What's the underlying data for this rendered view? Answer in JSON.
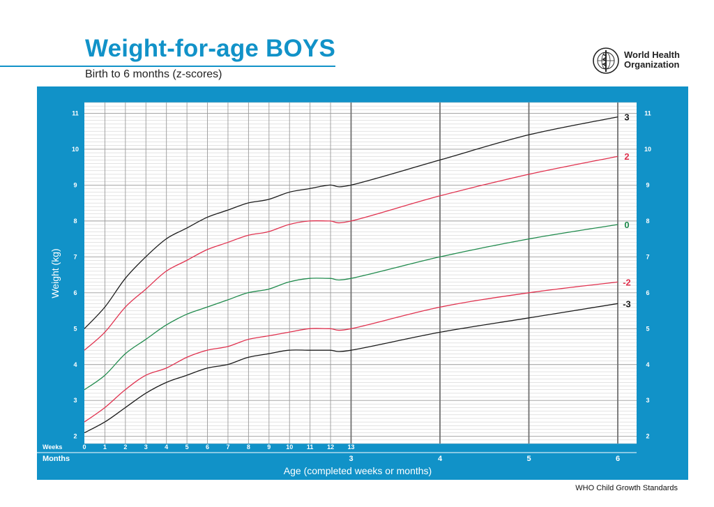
{
  "header": {
    "title": "Weight-for-age BOYS",
    "subtitle": "Birth to 6 months (z-scores)",
    "org_line1": "World Health",
    "org_line2": "Organization",
    "logo_icon": "who-emblem-icon"
  },
  "footer": {
    "text": "WHO Child Growth Standards"
  },
  "colors": {
    "frame": "#1192c8",
    "title": "#1192c8",
    "sd3": "#1a1a1a",
    "sd2": "#e0314e",
    "median": "#1f8a4c"
  },
  "chart_data": {
    "type": "line",
    "xlabel": "Age (completed weeks or months)",
    "ylabel": "Weight (kg)",
    "ylim": [
      1.8,
      11.3
    ],
    "y_ticks": [
      2,
      3,
      4,
      5,
      6,
      7,
      8,
      9,
      10,
      11
    ],
    "x_unit": "months",
    "xlim": [
      0,
      6
    ],
    "weeks_row_label": "Weeks",
    "months_row_label": "Months",
    "week_ticks": [
      "0",
      "1",
      "2",
      "3",
      "4",
      "5",
      "6",
      "7",
      "8",
      "9",
      "10",
      "11",
      "12",
      "13"
    ],
    "month_ticks": [
      "3",
      "4",
      "5",
      "6"
    ],
    "grid": true,
    "series": [
      {
        "name": "3",
        "color": "#1a1a1a",
        "x": [
          0,
          0.23,
          0.46,
          0.69,
          0.92,
          1.15,
          1.38,
          1.61,
          1.84,
          2.07,
          2.3,
          2.53,
          2.76,
          3,
          4,
          5,
          6
        ],
        "values": [
          5.0,
          5.6,
          6.4,
          7.0,
          7.5,
          7.8,
          8.1,
          8.3,
          8.5,
          8.6,
          8.8,
          8.9,
          9.0,
          9.0,
          9.7,
          10.4,
          10.9
        ]
      },
      {
        "name": "2",
        "color": "#e0314e",
        "x": [
          0,
          0.23,
          0.46,
          0.69,
          0.92,
          1.15,
          1.38,
          1.61,
          1.84,
          2.07,
          2.3,
          2.53,
          2.76,
          3,
          4,
          5,
          6
        ],
        "values": [
          4.4,
          4.9,
          5.6,
          6.1,
          6.6,
          6.9,
          7.2,
          7.4,
          7.6,
          7.7,
          7.9,
          8.0,
          8.0,
          8.0,
          8.7,
          9.3,
          9.8
        ]
      },
      {
        "name": "0",
        "color": "#1f8a4c",
        "x": [
          0,
          0.23,
          0.46,
          0.69,
          0.92,
          1.15,
          1.38,
          1.61,
          1.84,
          2.07,
          2.3,
          2.53,
          2.76,
          3,
          4,
          5,
          6
        ],
        "values": [
          3.3,
          3.7,
          4.3,
          4.7,
          5.1,
          5.4,
          5.6,
          5.8,
          6.0,
          6.1,
          6.3,
          6.4,
          6.4,
          6.4,
          7.0,
          7.5,
          7.9
        ]
      },
      {
        "name": "-2",
        "color": "#e0314e",
        "x": [
          0,
          0.23,
          0.46,
          0.69,
          0.92,
          1.15,
          1.38,
          1.61,
          1.84,
          2.07,
          2.3,
          2.53,
          2.76,
          3,
          4,
          5,
          6
        ],
        "values": [
          2.4,
          2.8,
          3.3,
          3.7,
          3.9,
          4.2,
          4.4,
          4.5,
          4.7,
          4.8,
          4.9,
          5.0,
          5.0,
          5.0,
          5.6,
          6.0,
          6.3
        ]
      },
      {
        "name": "-3",
        "color": "#1a1a1a",
        "x": [
          0,
          0.23,
          0.46,
          0.69,
          0.92,
          1.15,
          1.38,
          1.61,
          1.84,
          2.07,
          2.3,
          2.53,
          2.76,
          3,
          4,
          5,
          6
        ],
        "values": [
          2.1,
          2.4,
          2.8,
          3.2,
          3.5,
          3.7,
          3.9,
          4.0,
          4.2,
          4.3,
          4.4,
          4.4,
          4.4,
          4.4,
          4.9,
          5.3,
          5.7
        ]
      }
    ]
  }
}
